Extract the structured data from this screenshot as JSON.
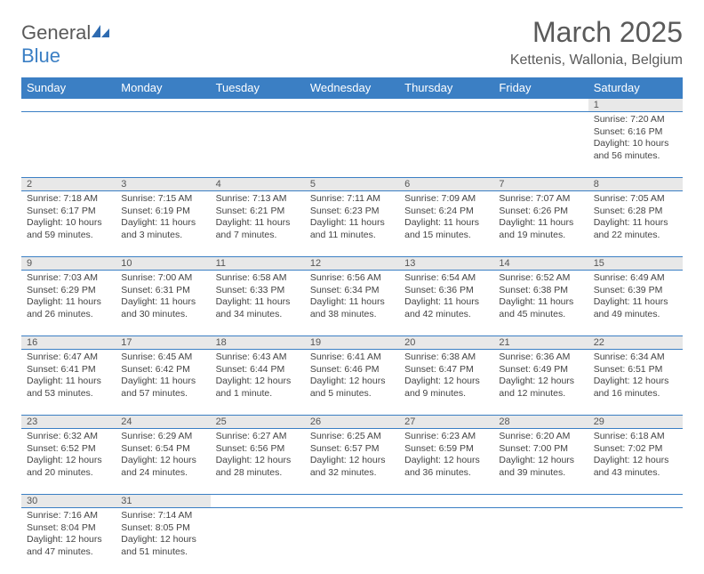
{
  "logo": {
    "text_a": "General",
    "text_b": "Blue"
  },
  "title": "March 2025",
  "location": "Kettenis, Wallonia, Belgium",
  "colors": {
    "header_bg": "#3b7fc4",
    "header_fg": "#ffffff",
    "daynum_bg": "#e8e8e8",
    "border": "#3b7fc4",
    "text": "#444444"
  },
  "day_headers": [
    "Sunday",
    "Monday",
    "Tuesday",
    "Wednesday",
    "Thursday",
    "Friday",
    "Saturday"
  ],
  "weeks": [
    [
      null,
      null,
      null,
      null,
      null,
      null,
      {
        "n": "1",
        "sr": "Sunrise: 7:20 AM",
        "ss": "Sunset: 6:16 PM",
        "dl": "Daylight: 10 hours and 56 minutes."
      }
    ],
    [
      {
        "n": "2",
        "sr": "Sunrise: 7:18 AM",
        "ss": "Sunset: 6:17 PM",
        "dl": "Daylight: 10 hours and 59 minutes."
      },
      {
        "n": "3",
        "sr": "Sunrise: 7:15 AM",
        "ss": "Sunset: 6:19 PM",
        "dl": "Daylight: 11 hours and 3 minutes."
      },
      {
        "n": "4",
        "sr": "Sunrise: 7:13 AM",
        "ss": "Sunset: 6:21 PM",
        "dl": "Daylight: 11 hours and 7 minutes."
      },
      {
        "n": "5",
        "sr": "Sunrise: 7:11 AM",
        "ss": "Sunset: 6:23 PM",
        "dl": "Daylight: 11 hours and 11 minutes."
      },
      {
        "n": "6",
        "sr": "Sunrise: 7:09 AM",
        "ss": "Sunset: 6:24 PM",
        "dl": "Daylight: 11 hours and 15 minutes."
      },
      {
        "n": "7",
        "sr": "Sunrise: 7:07 AM",
        "ss": "Sunset: 6:26 PM",
        "dl": "Daylight: 11 hours and 19 minutes."
      },
      {
        "n": "8",
        "sr": "Sunrise: 7:05 AM",
        "ss": "Sunset: 6:28 PM",
        "dl": "Daylight: 11 hours and 22 minutes."
      }
    ],
    [
      {
        "n": "9",
        "sr": "Sunrise: 7:03 AM",
        "ss": "Sunset: 6:29 PM",
        "dl": "Daylight: 11 hours and 26 minutes."
      },
      {
        "n": "10",
        "sr": "Sunrise: 7:00 AM",
        "ss": "Sunset: 6:31 PM",
        "dl": "Daylight: 11 hours and 30 minutes."
      },
      {
        "n": "11",
        "sr": "Sunrise: 6:58 AM",
        "ss": "Sunset: 6:33 PM",
        "dl": "Daylight: 11 hours and 34 minutes."
      },
      {
        "n": "12",
        "sr": "Sunrise: 6:56 AM",
        "ss": "Sunset: 6:34 PM",
        "dl": "Daylight: 11 hours and 38 minutes."
      },
      {
        "n": "13",
        "sr": "Sunrise: 6:54 AM",
        "ss": "Sunset: 6:36 PM",
        "dl": "Daylight: 11 hours and 42 minutes."
      },
      {
        "n": "14",
        "sr": "Sunrise: 6:52 AM",
        "ss": "Sunset: 6:38 PM",
        "dl": "Daylight: 11 hours and 45 minutes."
      },
      {
        "n": "15",
        "sr": "Sunrise: 6:49 AM",
        "ss": "Sunset: 6:39 PM",
        "dl": "Daylight: 11 hours and 49 minutes."
      }
    ],
    [
      {
        "n": "16",
        "sr": "Sunrise: 6:47 AM",
        "ss": "Sunset: 6:41 PM",
        "dl": "Daylight: 11 hours and 53 minutes."
      },
      {
        "n": "17",
        "sr": "Sunrise: 6:45 AM",
        "ss": "Sunset: 6:42 PM",
        "dl": "Daylight: 11 hours and 57 minutes."
      },
      {
        "n": "18",
        "sr": "Sunrise: 6:43 AM",
        "ss": "Sunset: 6:44 PM",
        "dl": "Daylight: 12 hours and 1 minute."
      },
      {
        "n": "19",
        "sr": "Sunrise: 6:41 AM",
        "ss": "Sunset: 6:46 PM",
        "dl": "Daylight: 12 hours and 5 minutes."
      },
      {
        "n": "20",
        "sr": "Sunrise: 6:38 AM",
        "ss": "Sunset: 6:47 PM",
        "dl": "Daylight: 12 hours and 9 minutes."
      },
      {
        "n": "21",
        "sr": "Sunrise: 6:36 AM",
        "ss": "Sunset: 6:49 PM",
        "dl": "Daylight: 12 hours and 12 minutes."
      },
      {
        "n": "22",
        "sr": "Sunrise: 6:34 AM",
        "ss": "Sunset: 6:51 PM",
        "dl": "Daylight: 12 hours and 16 minutes."
      }
    ],
    [
      {
        "n": "23",
        "sr": "Sunrise: 6:32 AM",
        "ss": "Sunset: 6:52 PM",
        "dl": "Daylight: 12 hours and 20 minutes."
      },
      {
        "n": "24",
        "sr": "Sunrise: 6:29 AM",
        "ss": "Sunset: 6:54 PM",
        "dl": "Daylight: 12 hours and 24 minutes."
      },
      {
        "n": "25",
        "sr": "Sunrise: 6:27 AM",
        "ss": "Sunset: 6:56 PM",
        "dl": "Daylight: 12 hours and 28 minutes."
      },
      {
        "n": "26",
        "sr": "Sunrise: 6:25 AM",
        "ss": "Sunset: 6:57 PM",
        "dl": "Daylight: 12 hours and 32 minutes."
      },
      {
        "n": "27",
        "sr": "Sunrise: 6:23 AM",
        "ss": "Sunset: 6:59 PM",
        "dl": "Daylight: 12 hours and 36 minutes."
      },
      {
        "n": "28",
        "sr": "Sunrise: 6:20 AM",
        "ss": "Sunset: 7:00 PM",
        "dl": "Daylight: 12 hours and 39 minutes."
      },
      {
        "n": "29",
        "sr": "Sunrise: 6:18 AM",
        "ss": "Sunset: 7:02 PM",
        "dl": "Daylight: 12 hours and 43 minutes."
      }
    ],
    [
      {
        "n": "30",
        "sr": "Sunrise: 7:16 AM",
        "ss": "Sunset: 8:04 PM",
        "dl": "Daylight: 12 hours and 47 minutes."
      },
      {
        "n": "31",
        "sr": "Sunrise: 7:14 AM",
        "ss": "Sunset: 8:05 PM",
        "dl": "Daylight: 12 hours and 51 minutes."
      },
      null,
      null,
      null,
      null,
      null
    ]
  ]
}
